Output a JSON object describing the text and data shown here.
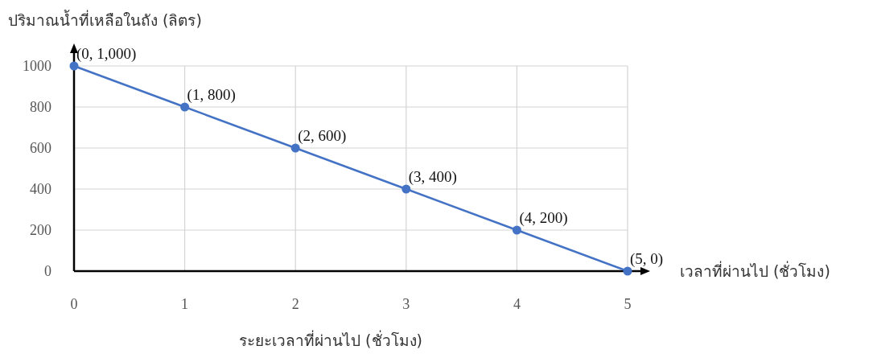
{
  "chart_data": {
    "type": "line",
    "x": [
      0,
      1,
      2,
      3,
      4,
      5
    ],
    "values": [
      1000,
      800,
      600,
      400,
      200,
      0
    ],
    "color": "#4472c4",
    "value_labels": [
      "(0, 1,000)",
      "(1, 800)",
      "(2, 600)",
      "(3, 400)",
      "(4, 200)",
      "(5, 0)"
    ],
    "xlim": [
      0,
      5
    ],
    "ylim": [
      0,
      1000
    ],
    "xticks": [
      0,
      1,
      2,
      3,
      4,
      5
    ],
    "yticks": [
      0,
      200,
      400,
      600,
      800,
      1000
    ],
    "grid": true,
    "marker": "circle",
    "xlabel": "ระยะเวลาที่ผ่านไป (ชั่วโมง)",
    "ylabel": "ปริมาณน้ำที่เหลือในถัง (ลิตร)",
    "annotations": [
      "เวลาที่ผ่านไป (ชั่วโมง)"
    ]
  }
}
